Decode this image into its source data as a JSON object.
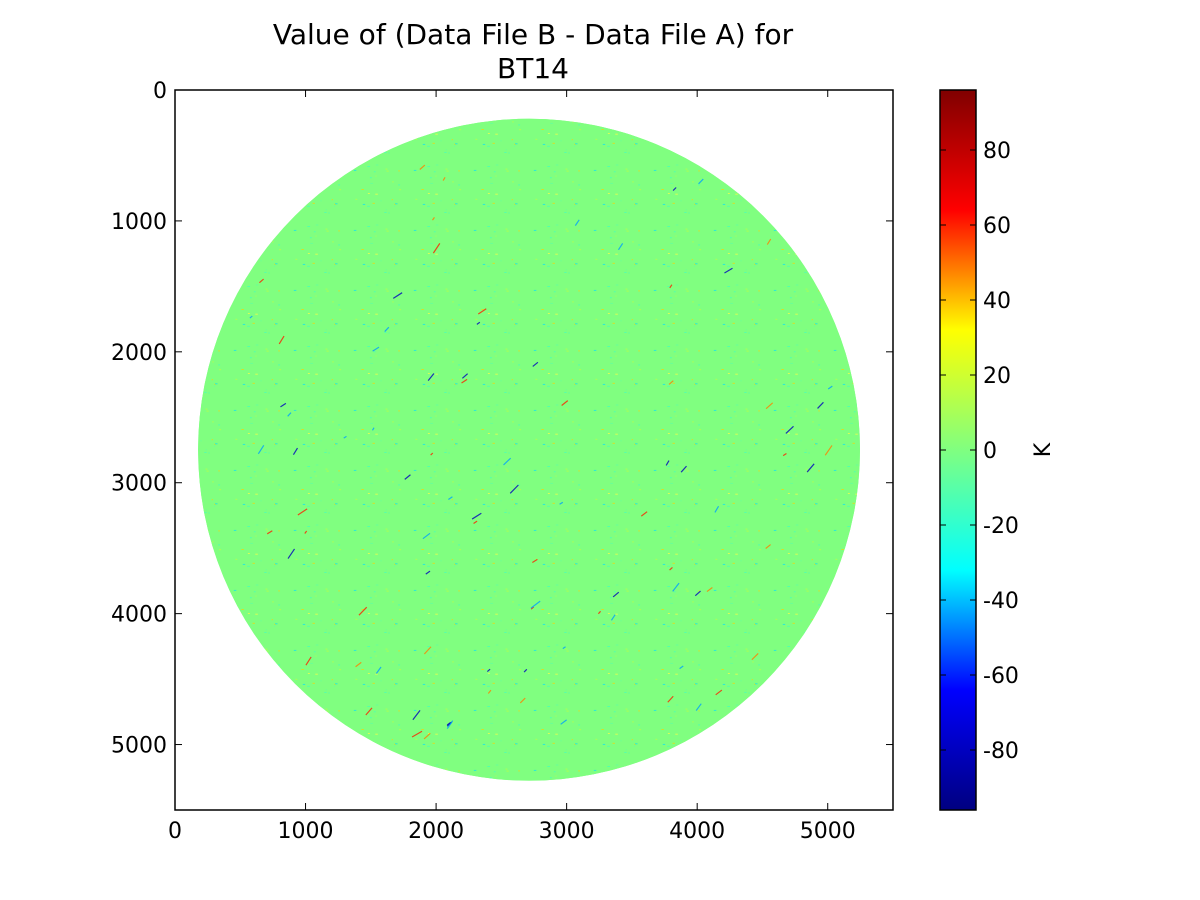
{
  "chart_data": {
    "type": "heatmap",
    "title_line1": "Value of (Data File B - Data File A) for",
    "title_line2": "BT14",
    "xlabel": "",
    "ylabel": "",
    "xlim": [
      0,
      5500
    ],
    "ylim": [
      5500,
      0
    ],
    "x_ticks": [
      0,
      1000,
      2000,
      3000,
      4000,
      5000
    ],
    "y_ticks": [
      0,
      1000,
      2000,
      3000,
      4000,
      5000
    ],
    "disk": {
      "center_x": 2712,
      "center_y": 2748,
      "radius": 2535
    },
    "colorbar": {
      "label": "K",
      "range": [
        -96,
        96
      ],
      "ticks": [
        80,
        60,
        40,
        20,
        0,
        -20,
        -40,
        -60,
        -80
      ],
      "tick_labels": [
        "80",
        "60",
        "40",
        "20",
        "0",
        "-20",
        "-40",
        "-60",
        "-80"
      ],
      "colormap": "jet",
      "stops": [
        "#000080",
        "#0000ff",
        "#00ffff",
        "#80ff80",
        "#ffff00",
        "#ff0000",
        "#800000"
      ]
    },
    "background_value": 0,
    "background_color": "#80ff80",
    "grid": false
  }
}
